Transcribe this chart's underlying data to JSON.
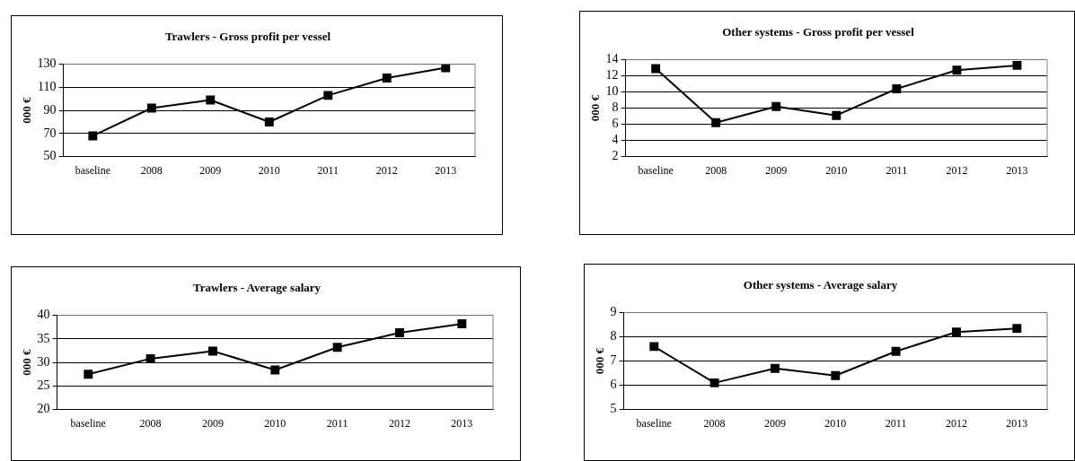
{
  "chart_data": [
    {
      "type": "line",
      "title": "Trawlers - Gross profit per vessel",
      "ylabel": "000 €",
      "categories": [
        "baseline",
        "2008",
        "2009",
        "2010",
        "2011",
        "2012",
        "2013"
      ],
      "series": [
        {
          "color": "#000000",
          "values": [
            68,
            92,
            99,
            80,
            103,
            118,
            127
          ]
        }
      ],
      "ylim": [
        50,
        130
      ],
      "yticks": [
        50,
        70,
        90,
        110,
        130
      ],
      "grid": "y",
      "marker": "square",
      "line_style": "solid",
      "legend": false
    },
    {
      "type": "line",
      "title": "Other systems - Gross profit per vessel",
      "ylabel": "000 €",
      "categories": [
        "baseline",
        "2008",
        "2009",
        "2010",
        "2011",
        "2012",
        "2013"
      ],
      "series": [
        {
          "color": "#000000",
          "values": [
            12.9,
            6.2,
            8.2,
            7.1,
            10.4,
            12.7,
            13.3
          ]
        }
      ],
      "ylim": [
        2,
        14
      ],
      "yticks": [
        2,
        4,
        6,
        8,
        10,
        12,
        14
      ],
      "grid": "y",
      "marker": "square",
      "line_style": "solid",
      "legend": false
    },
    {
      "type": "line",
      "title": "Trawlers - Average salary",
      "ylabel": "000 €",
      "categories": [
        "baseline",
        "2008",
        "2009",
        "2010",
        "2011",
        "2012",
        "2013"
      ],
      "series": [
        {
          "color": "#000000",
          "values": [
            27.5,
            30.8,
            32.4,
            28.4,
            33.2,
            36.3,
            38.2
          ]
        }
      ],
      "ylim": [
        20,
        40
      ],
      "yticks": [
        20,
        25,
        30,
        35,
        40
      ],
      "grid": "y",
      "marker": "square",
      "line_style": "solid",
      "legend": false
    },
    {
      "type": "line",
      "title": "Other systems - Average salary",
      "ylabel": "000 €",
      "categories": [
        "baseline",
        "2008",
        "2009",
        "2010",
        "2011",
        "2012",
        "2013"
      ],
      "series": [
        {
          "color": "#000000",
          "values": [
            7.6,
            6.1,
            6.7,
            6.4,
            7.4,
            8.2,
            8.35
          ]
        }
      ],
      "ylim": [
        5,
        9
      ],
      "yticks": [
        5,
        6,
        7,
        8,
        9
      ],
      "grid": "y",
      "marker": "square",
      "line_style": "solid",
      "legend": false
    }
  ]
}
